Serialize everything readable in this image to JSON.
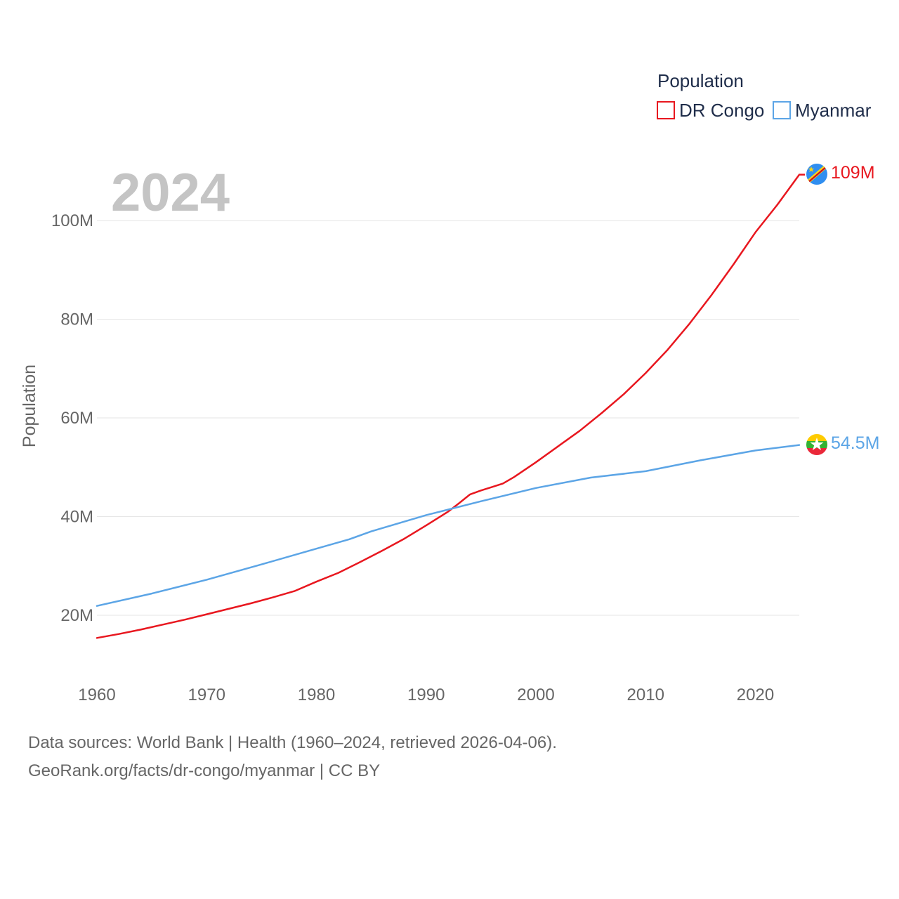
{
  "chart_data": {
    "type": "line",
    "year_label": "2024",
    "ylabel": "Population",
    "xlabel": "",
    "xlim": [
      1960,
      2024
    ],
    "ylim": [
      10000000,
      112000000
    ],
    "x_ticks": [
      {
        "value": 1960,
        "label": "1960"
      },
      {
        "value": 1970,
        "label": "1970"
      },
      {
        "value": 1980,
        "label": "1980"
      },
      {
        "value": 1990,
        "label": "1990"
      },
      {
        "value": 2000,
        "label": "2000"
      },
      {
        "value": 2010,
        "label": "2010"
      },
      {
        "value": 2020,
        "label": "2020"
      }
    ],
    "y_ticks": [
      {
        "value": 20000000,
        "label": "20M"
      },
      {
        "value": 40000000,
        "label": "40M"
      },
      {
        "value": 60000000,
        "label": "60M"
      },
      {
        "value": 80000000,
        "label": "80M"
      },
      {
        "value": 100000000,
        "label": "100M"
      }
    ],
    "legend": {
      "title": "Population",
      "position": "top-right"
    },
    "series": [
      {
        "name": "DR Congo",
        "color": "#e8171f",
        "end_label": "109M",
        "flag_icon": "dr-congo-flag-icon",
        "x": [
          1960,
          1962,
          1964,
          1966,
          1968,
          1970,
          1972,
          1974,
          1976,
          1978,
          1980,
          1982,
          1984,
          1986,
          1988,
          1990,
          1992,
          1993,
          1994,
          1995,
          1996,
          1997,
          1998,
          2000,
          2002,
          2004,
          2006,
          2008,
          2010,
          2012,
          2014,
          2016,
          2018,
          2020,
          2022,
          2024
        ],
        "values": [
          15400000,
          16200000,
          17100000,
          18100000,
          19100000,
          20200000,
          21300000,
          22400000,
          23600000,
          24900000,
          26800000,
          28600000,
          30800000,
          33100000,
          35500000,
          38200000,
          41000000,
          42700000,
          44500000,
          45300000,
          46000000,
          46700000,
          48000000,
          51000000,
          54200000,
          57400000,
          61000000,
          64800000,
          69100000,
          73800000,
          79100000,
          84900000,
          91100000,
          97600000,
          103200000,
          109300000
        ]
      },
      {
        "name": "Myanmar",
        "color": "#5ca5e6",
        "end_label": "54.5M",
        "flag_icon": "myanmar-flag-icon",
        "x": [
          1960,
          1965,
          1970,
          1975,
          1980,
          1983,
          1985,
          1990,
          1995,
          2000,
          2005,
          2010,
          2015,
          2020,
          2024
        ],
        "values": [
          21900000,
          24400000,
          27200000,
          30300000,
          33500000,
          35400000,
          37000000,
          40300000,
          43100000,
          45800000,
          47900000,
          49200000,
          51400000,
          53400000,
          54500000
        ]
      }
    ]
  },
  "footer": {
    "line1": "Data sources: World Bank | Health (1960–2024, retrieved 2026-04-06).",
    "line2": "GeoRank.org/facts/dr-congo/myanmar | CC BY"
  }
}
